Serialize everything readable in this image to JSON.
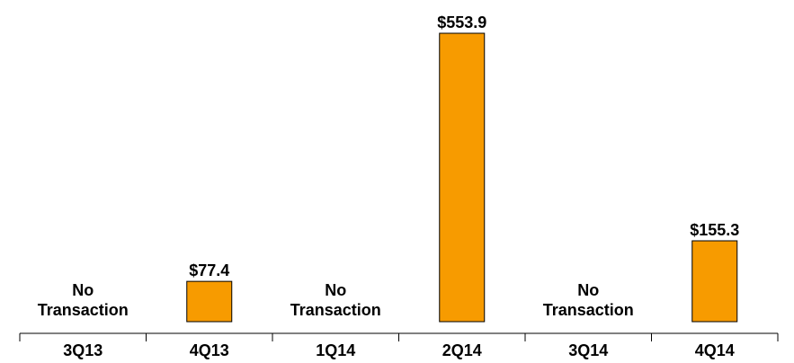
{
  "chart_data": {
    "type": "bar",
    "categories": [
      "3Q13",
      "4Q13",
      "1Q14",
      "2Q14",
      "3Q14",
      "4Q14"
    ],
    "values": [
      null,
      77.4,
      null,
      553.9,
      null,
      155.3
    ],
    "value_labels": [
      "No Transaction",
      "$77.4",
      "No Transaction",
      "$553.9",
      "No Transaction",
      "$155.3"
    ],
    "color": "#f79b00",
    "ylim": [
      0,
      566
    ]
  }
}
